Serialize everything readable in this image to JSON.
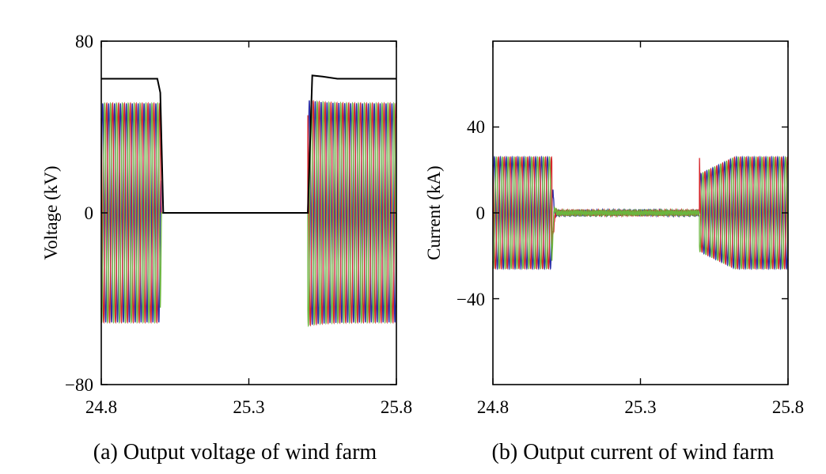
{
  "colors": {
    "phase_a": "#2b2fa8",
    "phase_b": "#d6262b",
    "phase_c": "#6bb63f",
    "envelope": "#000000"
  },
  "chart_data": [
    {
      "type": "line",
      "caption": "(a) Output voltage of wind farm",
      "ylabel": "Voltage (kV)",
      "xlabel": "",
      "xlim": [
        24.8,
        25.8
      ],
      "ylim": [
        -80,
        80
      ],
      "x_ticks": [
        "24.8",
        "25.3",
        "25.8"
      ],
      "y_ticks": [
        "80",
        "0",
        "−80"
      ],
      "x_tick_values": [
        24.8,
        25.3,
        25.8
      ],
      "y_tick_values": [
        80,
        0,
        -80
      ],
      "grid": false,
      "fault_interval": [
        25.0,
        25.5
      ],
      "series": [
        {
          "kind": "three-phase-ac",
          "amplitude_pre_fault": 51,
          "amplitude_post_fault": 51,
          "amplitude_during_fault": 0,
          "frequency_hz": 50
        },
        {
          "kind": "rms-envelope",
          "x": [
            24.8,
            24.99,
            25.0,
            25.01,
            25.49,
            25.5,
            25.515,
            25.55,
            25.6,
            25.8
          ],
          "y": [
            62.5,
            62.5,
            56,
            0,
            0,
            0,
            64,
            63.5,
            62.5,
            62.5
          ]
        }
      ]
    },
    {
      "type": "line",
      "caption": "(b) Output current of wind farm",
      "ylabel": "Current (kA)",
      "xlabel": "",
      "xlim": [
        24.8,
        25.8
      ],
      "ylim": [
        -80,
        80
      ],
      "x_ticks": [
        "24.8",
        "25.3",
        "25.8"
      ],
      "y_ticks": [
        "40",
        "0",
        "−40"
      ],
      "x_tick_values": [
        24.8,
        25.3,
        25.8
      ],
      "y_tick_values": [
        40,
        0,
        -40
      ],
      "grid": false,
      "fault_interval": [
        25.0,
        25.5
      ],
      "series": [
        {
          "kind": "three-phase-ac",
          "amplitude_pre_fault": 26,
          "amplitude_during_fault": 1.5,
          "amplitude_post_fault_min": 18,
          "amplitude_post_fault": 26,
          "spike_at_fault_start": -37,
          "spike_at_fault_end": 28,
          "frequency_hz": 50
        }
      ]
    }
  ]
}
